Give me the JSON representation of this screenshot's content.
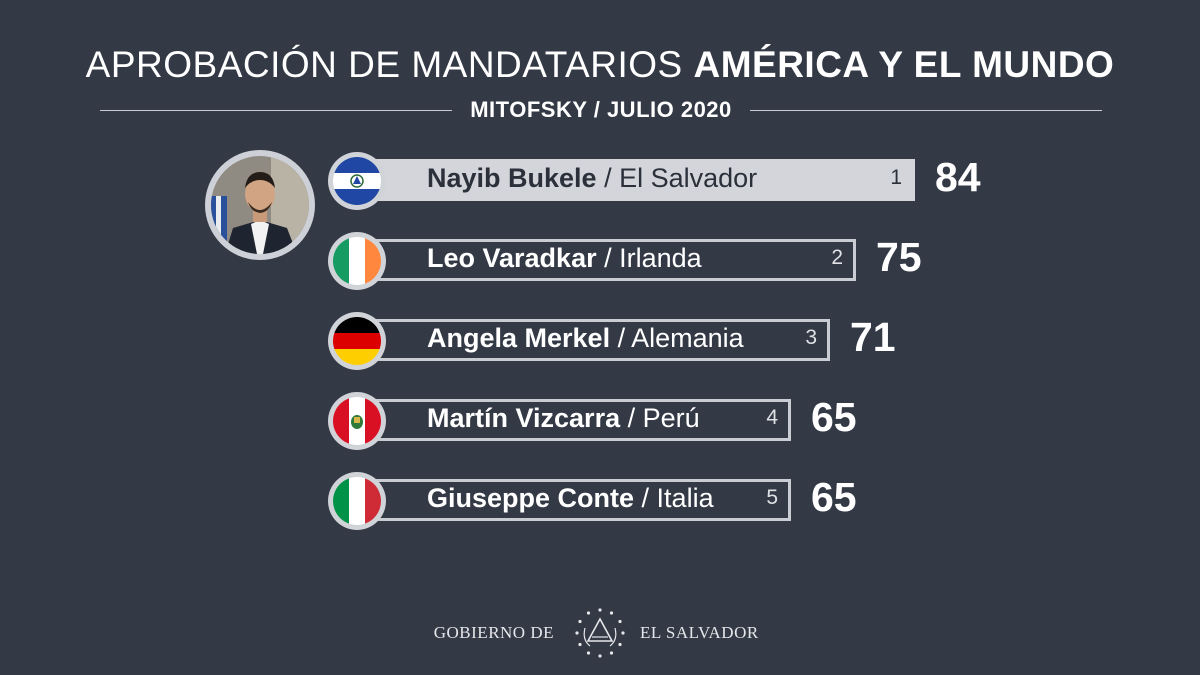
{
  "header": {
    "title_regular": "APROBACIÓN DE MANDATARIOS",
    "title_bold": "AMÉRICA Y EL MUNDO",
    "subtitle": "MITOFSKY / JULIO 2020"
  },
  "chart_data": {
    "type": "bar",
    "title": "APROBACIÓN DE MANDATARIOS AMÉRICA Y EL MUNDO",
    "subtitle": "MITOFSKY / JULIO 2020",
    "xlim": [
      0,
      84
    ],
    "rows": [
      {
        "rank": "1",
        "leader": "Nayib Bukele",
        "country": "El Salvador",
        "value": 84,
        "flag": "el-salvador-flag"
      },
      {
        "rank": "2",
        "leader": "Leo Varadkar",
        "country": "Irlanda",
        "value": 75,
        "flag": "ireland-flag"
      },
      {
        "rank": "3",
        "leader": "Angela Merkel",
        "country": "Alemania",
        "value": 71,
        "flag": "germany-flag"
      },
      {
        "rank": "4",
        "leader": "Martín Vizcarra",
        "country": "Perú",
        "value": 65,
        "flag": "peru-flag"
      },
      {
        "rank": "5",
        "leader": "Giuseppe Conte",
        "country": "Italia",
        "value": 65,
        "flag": "italy-flag"
      }
    ]
  },
  "colors": {
    "background": "#333945",
    "bar_highlight": "#d3d5da",
    "bar_outline": "#c9ccd3"
  },
  "footer": {
    "left": "GOBIERNO DE",
    "right": "EL SALVADOR",
    "emblem": "el-salvador-coat-of-arms-icon"
  }
}
